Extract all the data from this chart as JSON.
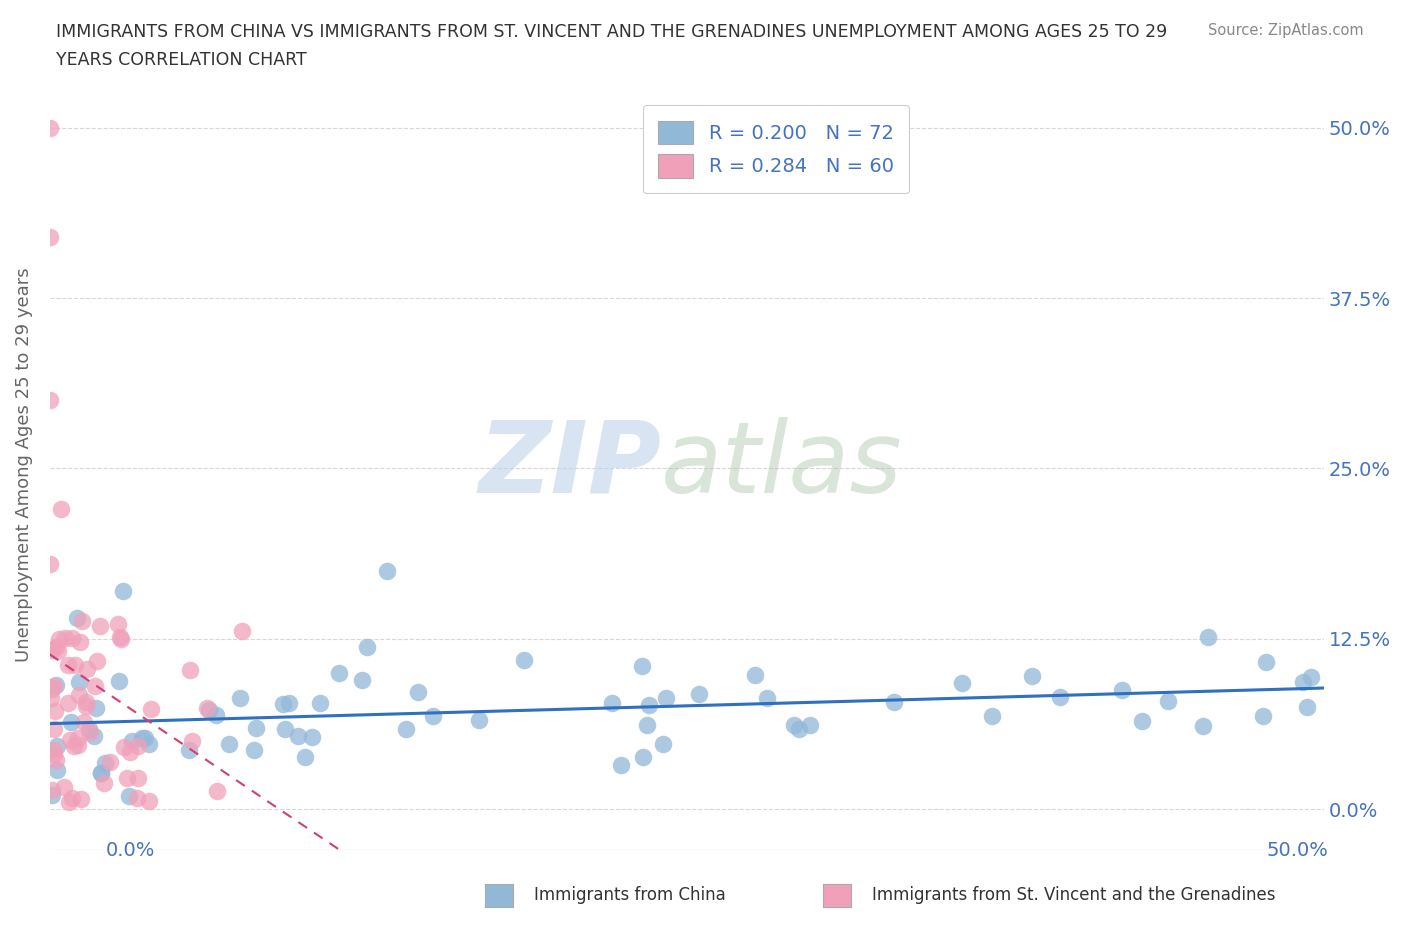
{
  "title_line1": "IMMIGRANTS FROM CHINA VS IMMIGRANTS FROM ST. VINCENT AND THE GRENADINES UNEMPLOYMENT AMONG AGES 25 TO 29",
  "title_line2": "YEARS CORRELATION CHART",
  "source_text": "Source: ZipAtlas.com",
  "ylabel": "Unemployment Among Ages 25 to 29 years",
  "xlabel_china": "Immigrants from China",
  "xlabel_svg": "Immigrants from St. Vincent and the Grenadines",
  "xlim": [
    0.0,
    0.5
  ],
  "ylim": [
    -0.03,
    0.535
  ],
  "yticks": [
    0.0,
    0.125,
    0.25,
    0.375,
    0.5
  ],
  "ytick_labels": [
    "0.0%",
    "12.5%",
    "25.0%",
    "37.5%",
    "50.0%"
  ],
  "xtick_left": "0.0%",
  "xtick_right": "50.0%",
  "R_china": 0.2,
  "N_china": 72,
  "R_svg": 0.284,
  "N_svg": 60,
  "color_china": "#92b8d8",
  "color_svg": "#f0a0b8",
  "trendline_china_color": "#3070c0",
  "trendline_svg_color": "#d04070",
  "watermark_zip": "ZIP",
  "watermark_atlas": "atlas",
  "background_color": "#ffffff",
  "grid_color": "#d8d8d8",
  "title_color": "#333333",
  "axis_label_color": "#666666",
  "tick_label_color": "#4472c4",
  "legend_text_color": "#4472c4"
}
